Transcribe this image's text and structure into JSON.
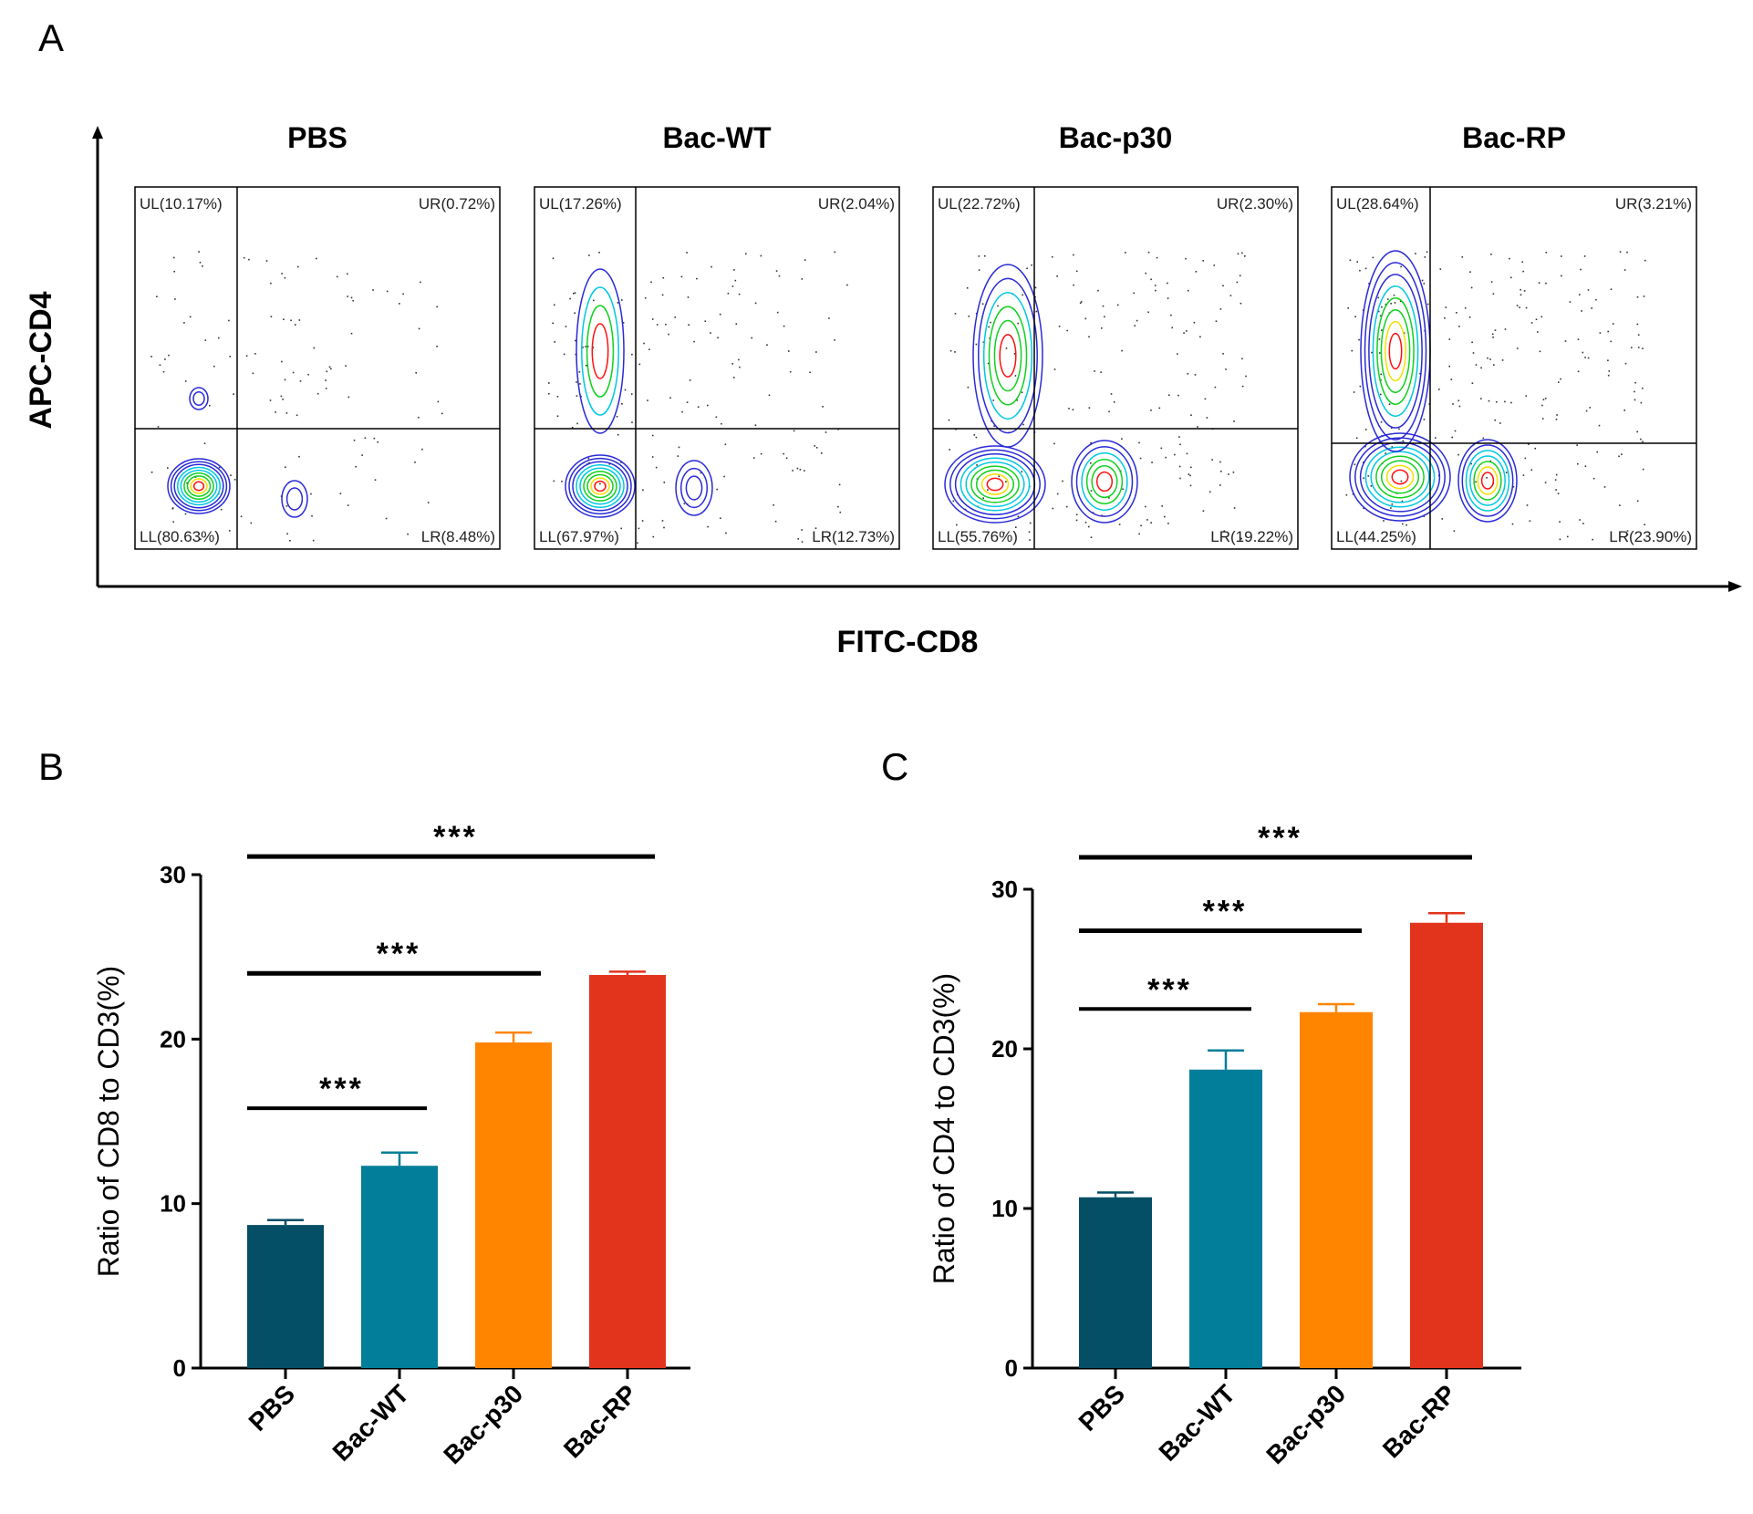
{
  "panels": {
    "A": "A",
    "B": "B",
    "C": "C"
  },
  "flow": {
    "y_axis_label": "APC-CD4",
    "x_axis_label": "FITC-CD8",
    "samples": [
      {
        "name": "PBS",
        "UL": "UL(10.17%)",
        "UR": "UR(0.72%)",
        "LL": "LL(80.63%)",
        "LR": "LR(8.48%)"
      },
      {
        "name": "Bac-WT",
        "UL": "UL(17.26%)",
        "UR": "UR(2.04%)",
        "LL": "LL(67.97%)",
        "LR": "LR(12.73%)"
      },
      {
        "name": "Bac-p30",
        "UL": "UL(22.72%)",
        "UR": "UR(2.30%)",
        "LL": "LL(55.76%)",
        "LR": "LR(19.22%)"
      },
      {
        "name": "Bac-RP",
        "UL": "UL(28.64%)",
        "UR": "UR(3.21%)",
        "LL": "LL(44.25%)",
        "LR": "LR(23.90%)"
      }
    ]
  },
  "colors": {
    "bars": [
      "#044f66",
      "#037e9a",
      "#ff8500",
      "#e2341c"
    ],
    "contour_outer": "#2a2ad6",
    "contour_mid": "#00c8e0",
    "contour_green": "#10d020",
    "contour_yellow": "#f0e000",
    "contour_core": "#ff1010"
  },
  "chart_data": [
    {
      "type": "bar",
      "panel": "B",
      "categories": [
        "PBS",
        "Bac-WT",
        "Bac-p30",
        "Bac-RP"
      ],
      "values": [
        8.7,
        12.3,
        19.8,
        23.9
      ],
      "errors": [
        0.3,
        0.8,
        0.6,
        0.2
      ],
      "ylabel": "Ratio of CD8 to CD3(%)",
      "xlabel": "",
      "ylim": [
        0,
        30
      ],
      "yticks": [
        "0",
        "10",
        "20",
        "30"
      ],
      "significance": [
        {
          "from": 0,
          "to": 1,
          "label": "***",
          "level": 15.8
        },
        {
          "from": 0,
          "to": 2,
          "label": "***",
          "level": 24.0
        },
        {
          "from": 0,
          "to": 3,
          "label": "***",
          "level": 31.1
        }
      ]
    },
    {
      "type": "bar",
      "panel": "C",
      "categories": [
        "PBS",
        "Bac-WT",
        "Bac-p30",
        "Bac-RP"
      ],
      "values": [
        10.7,
        18.7,
        22.3,
        27.9
      ],
      "errors": [
        0.3,
        1.2,
        0.5,
        0.6
      ],
      "ylabel": "Ratio of CD4 to CD3(%)",
      "xlabel": "",
      "ylim": [
        0,
        30
      ],
      "yticks": [
        "0",
        "10",
        "20",
        "30"
      ],
      "significance": [
        {
          "from": 0,
          "to": 1,
          "label": "***",
          "level": 22.5
        },
        {
          "from": 0,
          "to": 2,
          "label": "***",
          "level": 27.4
        },
        {
          "from": 0,
          "to": 3,
          "label": "***",
          "level": 32.0
        }
      ]
    }
  ]
}
